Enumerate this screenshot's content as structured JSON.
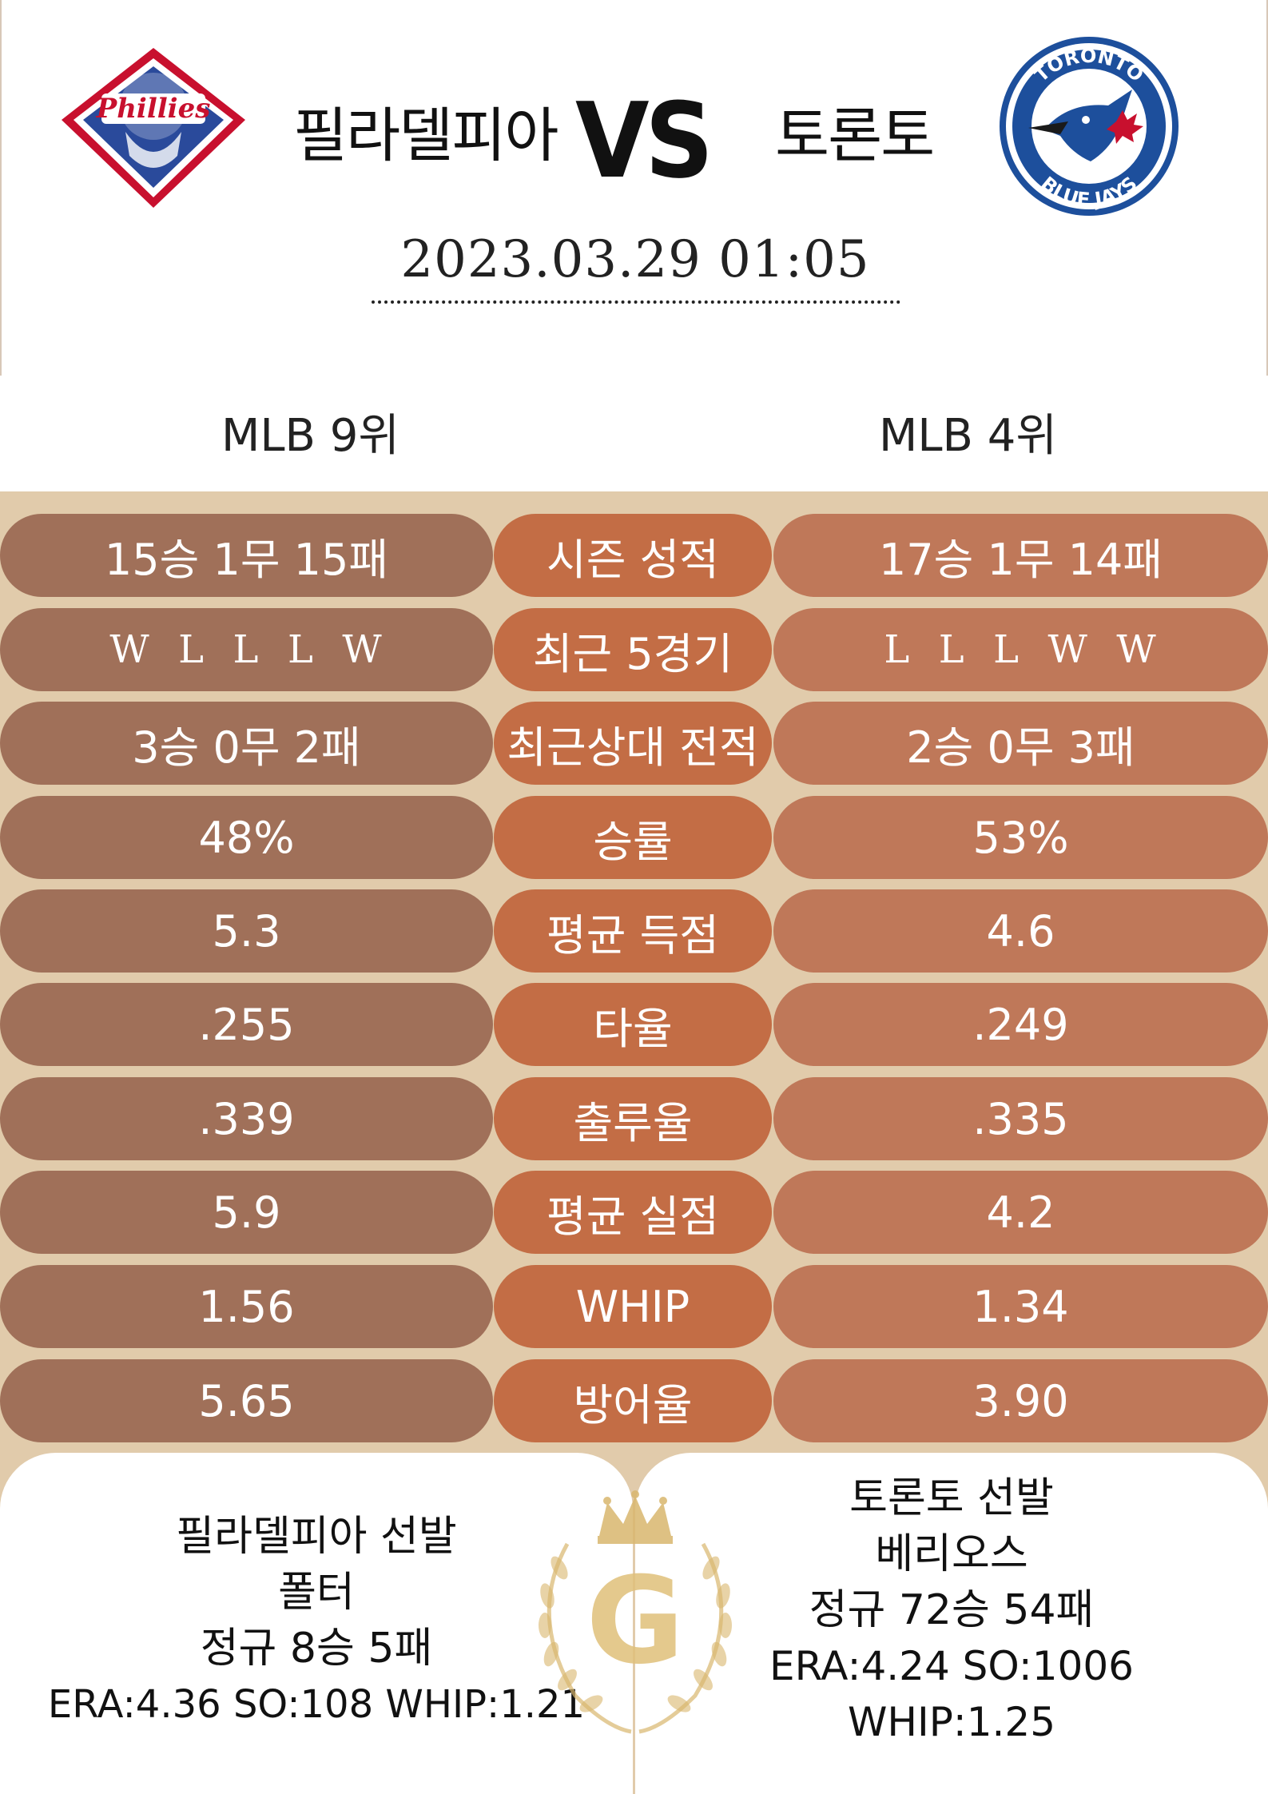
{
  "header": {
    "home_team": "필라델피아",
    "vs": "VS",
    "away_team": "토론토",
    "datetime": "2023.03.29  01:05",
    "home_logo": "phillies-logo",
    "away_logo": "blue-jays-logo",
    "logo_text": {
      "home": "Phillies",
      "away_top": "TORONTO",
      "away_bottom": "BLUE JAYS"
    }
  },
  "ranks": {
    "home": "MLB 9위",
    "away": "MLB 4위"
  },
  "stats": [
    {
      "label": "시즌 성적",
      "home": "15승 1무 15패",
      "away": "17승 1무 14패"
    },
    {
      "label": "최근 5경기",
      "home": "W  L  L  L  W",
      "away": "L  L  L  W  W"
    },
    {
      "label": "최근상대 전적",
      "home": "3승 0무 2패",
      "away": "2승 0무 3패"
    },
    {
      "label": "승률",
      "home": "48%",
      "away": "53%"
    },
    {
      "label": "평균 득점",
      "home": "5.3",
      "away": "4.6"
    },
    {
      "label": "타율",
      "home": ".255",
      "away": ".249"
    },
    {
      "label": "출루율",
      "home": ".339",
      "away": ".335"
    },
    {
      "label": "평균 실점",
      "home": "5.9",
      "away": "4.2"
    },
    {
      "label": "WHIP",
      "home": "1.56",
      "away": "1.34"
    },
    {
      "label": "방어율",
      "home": "5.65",
      "away": "3.90"
    }
  ],
  "pitchers": {
    "home": {
      "title": "필라델피아 선발",
      "name": "폴터",
      "record": "정규 8승 5패",
      "stats": "ERA:4.36 SO:108 WHIP:1.21"
    },
    "away": {
      "title": "토론토 선발",
      "name": "베리오스",
      "record": "정규 72승 54패",
      "stats": "ERA:4.24 SO:1006",
      "whip": "WHIP:1.25"
    }
  },
  "emblem": {
    "letter": "G",
    "icon": "crown-laurel-icon"
  },
  "colors": {
    "background": "#e1cbab",
    "home_pill": "#a07059",
    "center_pill": "#c36d45",
    "away_pill": "#bf7859",
    "gold": "#d9b76e"
  }
}
